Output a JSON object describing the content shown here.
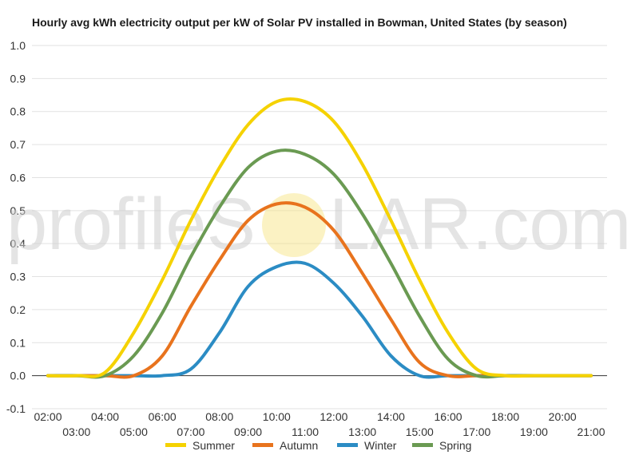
{
  "chart_data": {
    "type": "line",
    "title": "Hourly avg kWh electricity output per kW of Solar PV installed in Bowman, United States (by season)",
    "xlabel": "",
    "ylabel": "",
    "ylim": [
      -0.1,
      1.0
    ],
    "yticks": [
      "1.0",
      "0.9",
      "0.8",
      "0.7",
      "0.6",
      "0.5",
      "0.4",
      "0.3",
      "0.2",
      "0.1",
      "0.0",
      "-0.1"
    ],
    "x_tick_labels": [
      "02:00",
      "03:00",
      "04:00",
      "05:00",
      "06:00",
      "07:00",
      "08:00",
      "09:00",
      "10:00",
      "11:00",
      "12:00",
      "13:00",
      "14:00",
      "15:00",
      "16:00",
      "17:00",
      "18:00",
      "19:00",
      "20:00",
      "21:00"
    ],
    "x": [
      2,
      3,
      4,
      5,
      6,
      7,
      8,
      9,
      10,
      11,
      12,
      13,
      14,
      15,
      16,
      17,
      18,
      19,
      20,
      21
    ],
    "grid": true,
    "legend_position": "bottom",
    "series": [
      {
        "name": "Summer",
        "color": "#f5d200",
        "values": [
          0,
          0,
          0.01,
          0.13,
          0.29,
          0.47,
          0.63,
          0.76,
          0.83,
          0.83,
          0.77,
          0.64,
          0.47,
          0.29,
          0.13,
          0.02,
          0,
          0,
          0,
          0
        ]
      },
      {
        "name": "Autumn",
        "color": "#e8731d",
        "values": [
          0,
          0,
          0,
          0,
          0.06,
          0.21,
          0.35,
          0.47,
          0.52,
          0.51,
          0.44,
          0.31,
          0.17,
          0.04,
          0,
          0,
          0,
          0,
          0,
          0
        ]
      },
      {
        "name": "Winter",
        "color": "#2b8cc4",
        "values": [
          0,
          0,
          0,
          0,
          0,
          0.02,
          0.13,
          0.27,
          0.33,
          0.34,
          0.28,
          0.18,
          0.06,
          0,
          0,
          0,
          0,
          0,
          0,
          0
        ]
      },
      {
        "name": "Spring",
        "color": "#6a9a52",
        "values": [
          0,
          0,
          0,
          0.06,
          0.19,
          0.36,
          0.51,
          0.63,
          0.68,
          0.67,
          0.61,
          0.49,
          0.34,
          0.18,
          0.05,
          0,
          0,
          0,
          0,
          0
        ]
      }
    ]
  },
  "watermark": {
    "text_left": "profileS",
    "text_right": "LAR.com",
    "sun_color": "#f7e27a"
  }
}
